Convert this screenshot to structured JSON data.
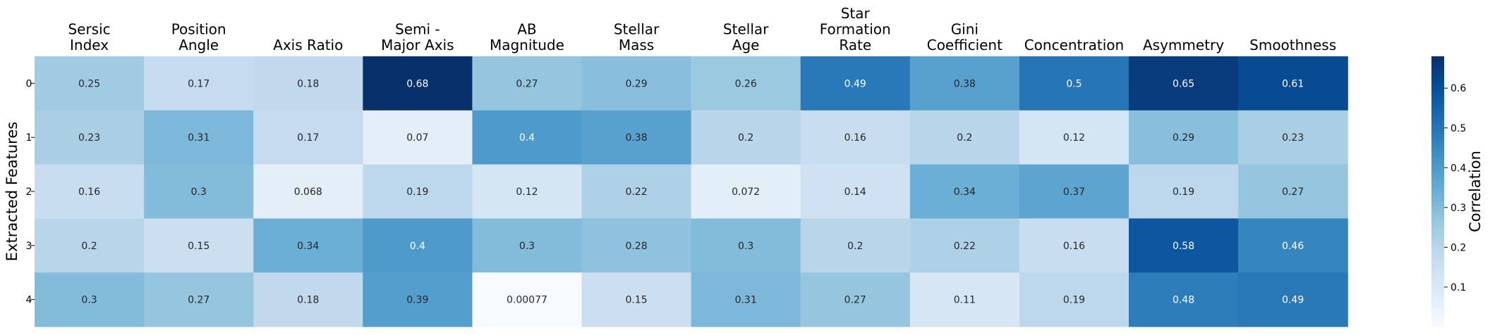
{
  "chart_data": {
    "type": "heatmap",
    "title": "",
    "xlabel": "",
    "ylabel": "Extracted Features",
    "columns": [
      [
        "Sersic",
        "Index"
      ],
      [
        "Position",
        "Angle"
      ],
      [
        "Axis Ratio"
      ],
      [
        "Semi -",
        "Major Axis"
      ],
      [
        "AB",
        "Magnitude"
      ],
      [
        "Stellar",
        "Mass"
      ],
      [
        "Stellar",
        "Age"
      ],
      [
        "Star",
        "Formation",
        "Rate"
      ],
      [
        "Gini",
        "Coefficient"
      ],
      [
        "Concentration"
      ],
      [
        "Asymmetry"
      ],
      [
        "Smoothness"
      ]
    ],
    "rows": [
      "0",
      "1",
      "2",
      "3",
      "4"
    ],
    "values": [
      [
        0.25,
        0.17,
        0.18,
        0.68,
        0.27,
        0.29,
        0.26,
        0.49,
        0.38,
        0.5,
        0.65,
        0.61
      ],
      [
        0.23,
        0.31,
        0.17,
        0.07,
        0.4,
        0.38,
        0.2,
        0.16,
        0.2,
        0.12,
        0.29,
        0.23
      ],
      [
        0.16,
        0.3,
        0.068,
        0.19,
        0.12,
        0.22,
        0.072,
        0.14,
        0.34,
        0.37,
        0.19,
        0.27
      ],
      [
        0.2,
        0.15,
        0.34,
        0.4,
        0.3,
        0.28,
        0.3,
        0.2,
        0.22,
        0.16,
        0.58,
        0.46
      ],
      [
        0.3,
        0.27,
        0.18,
        0.39,
        0.00077,
        0.15,
        0.31,
        0.27,
        0.11,
        0.19,
        0.48,
        0.49
      ]
    ],
    "annotations": [
      [
        "0.25",
        "0.17",
        "0.18",
        "0.68",
        "0.27",
        "0.29",
        "0.26",
        "0.49",
        "0.38",
        "0.5",
        "0.65",
        "0.61"
      ],
      [
        "0.23",
        "0.31",
        "0.17",
        "0.07",
        "0.4",
        "0.38",
        "0.2",
        "0.16",
        "0.2",
        "0.12",
        "0.29",
        "0.23"
      ],
      [
        "0.16",
        "0.3",
        "0.068",
        "0.19",
        "0.12",
        "0.22",
        "0.072",
        "0.14",
        "0.34",
        "0.37",
        "0.19",
        "0.27"
      ],
      [
        "0.2",
        "0.15",
        "0.34",
        "0.4",
        "0.3",
        "0.28",
        "0.3",
        "0.2",
        "0.22",
        "0.16",
        "0.58",
        "0.46"
      ],
      [
        "0.3",
        "0.27",
        "0.18",
        "0.39",
        "0.00077",
        "0.15",
        "0.31",
        "0.27",
        "0.11",
        "0.19",
        "0.48",
        "0.49"
      ]
    ],
    "colormap": "Blues",
    "vmin": 0.00077,
    "vmax": 0.68,
    "colorbar": {
      "label": "Correlation",
      "ticks": [
        0.1,
        0.2,
        0.3,
        0.4,
        0.5,
        0.6
      ],
      "tick_labels": [
        "0.1",
        "0.2",
        "0.3",
        "0.4",
        "0.5",
        "0.6"
      ]
    }
  }
}
